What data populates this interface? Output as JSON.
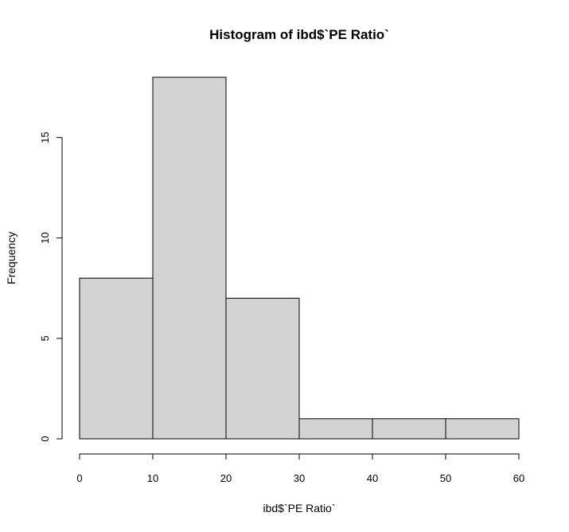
{
  "chart_data": {
    "type": "bar",
    "title": "Histogram of ibd$`PE Ratio`",
    "xlabel": "ibd$`PE Ratio`",
    "ylabel": "Frequency",
    "bins": [
      {
        "from": 0,
        "to": 10,
        "count": 8
      },
      {
        "from": 10,
        "to": 20,
        "count": 18
      },
      {
        "from": 20,
        "to": 30,
        "count": 7
      },
      {
        "from": 30,
        "to": 40,
        "count": 1
      },
      {
        "from": 40,
        "to": 50,
        "count": 1
      },
      {
        "from": 50,
        "to": 60,
        "count": 1
      }
    ],
    "xlim": [
      0,
      60
    ],
    "ylim": [
      0,
      18
    ],
    "x_ticks": [
      0,
      10,
      20,
      30,
      40,
      50,
      60
    ],
    "y_ticks": [
      0,
      5,
      10,
      15
    ],
    "bar_color": "#d3d3d3",
    "grid": false
  }
}
